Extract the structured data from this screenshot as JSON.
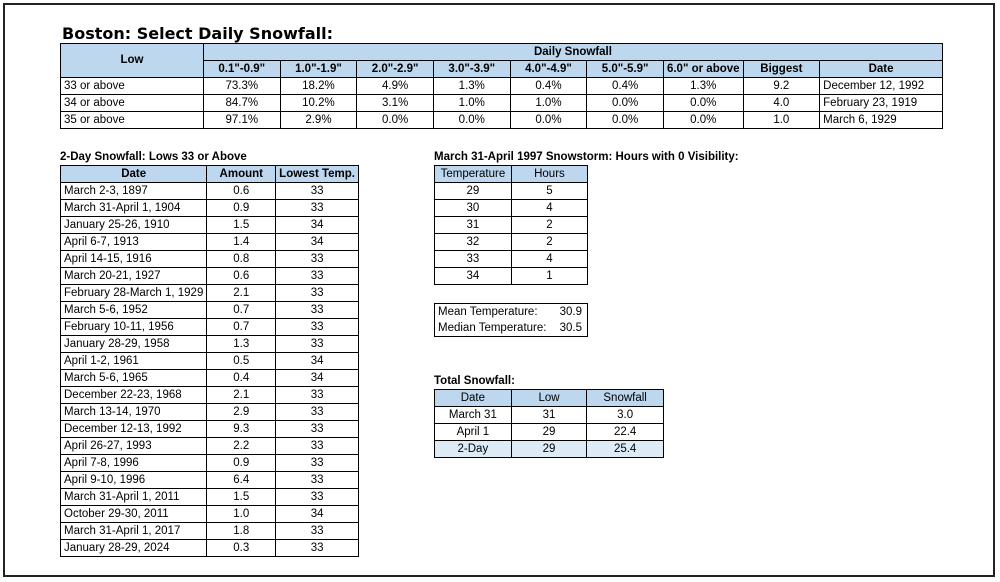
{
  "title": "Boston: Select Daily Snowfall:",
  "daily": {
    "low_header": "Low",
    "group_header": "Daily Snowfall",
    "columns": [
      "0.1\"-0.9\"",
      "1.0\"-1.9\"",
      "2.0\"-2.9\"",
      "3.0\"-3.9\"",
      "4.0\"-4.9\"",
      "5.0\"-5.9\"",
      "6.0\" or above",
      "Biggest",
      "Date"
    ],
    "rows": [
      [
        "33 or above",
        "73.3%",
        "18.2%",
        "4.9%",
        "1.3%",
        "0.4%",
        "0.4%",
        "1.3%",
        "9.2",
        "December 12, 1992"
      ],
      [
        "34 or above",
        "84.7%",
        "10.2%",
        "3.1%",
        "1.0%",
        "1.0%",
        "0.0%",
        "0.0%",
        "4.0",
        "February 23, 1919"
      ],
      [
        "35 or above",
        "97.1%",
        "2.9%",
        "0.0%",
        "0.0%",
        "0.0%",
        "0.0%",
        "0.0%",
        "1.0",
        "March 6, 1929"
      ]
    ]
  },
  "twoday": {
    "title": "2-Day Snowfall: Lows 33 or Above",
    "columns": [
      "Date",
      "Amount",
      "Lowest Temp."
    ],
    "rows": [
      [
        "March 2-3, 1897",
        "0.6",
        "33"
      ],
      [
        "March 31-April 1, 1904",
        "0.9",
        "33"
      ],
      [
        "January 25-26, 1910",
        "1.5",
        "34"
      ],
      [
        "April 6-7, 1913",
        "1.4",
        "34"
      ],
      [
        "April 14-15, 1916",
        "0.8",
        "33"
      ],
      [
        "March 20-21, 1927",
        "0.6",
        "33"
      ],
      [
        "February 28-March 1, 1929",
        "2.1",
        "33"
      ],
      [
        "March 5-6, 1952",
        "0.7",
        "33"
      ],
      [
        "February 10-11, 1956",
        "0.7",
        "33"
      ],
      [
        "January 28-29, 1958",
        "1.3",
        "33"
      ],
      [
        "April 1-2, 1961",
        "0.5",
        "34"
      ],
      [
        "March 5-6, 1965",
        "0.4",
        "34"
      ],
      [
        "December 22-23, 1968",
        "2.1",
        "33"
      ],
      [
        "March 13-14, 1970",
        "2.9",
        "33"
      ],
      [
        "December 12-13, 1992",
        "9.3",
        "33"
      ],
      [
        "April 26-27, 1993",
        "2.2",
        "33"
      ],
      [
        "April 7-8, 1996",
        "0.9",
        "33"
      ],
      [
        "April 9-10, 1996",
        "6.4",
        "33"
      ],
      [
        "March 31-April 1, 2011",
        "1.5",
        "33"
      ],
      [
        "October 29-30, 2011",
        "1.0",
        "34"
      ],
      [
        "March 31-April 1, 2017",
        "1.8",
        "33"
      ],
      [
        "January 28-29, 2024",
        "0.3",
        "33"
      ]
    ]
  },
  "visibility": {
    "title": "March 31-April 1997 Snowstorm: Hours with 0 Visibility:",
    "columns": [
      "Temperature",
      "Hours"
    ],
    "rows": [
      [
        "29",
        "5"
      ],
      [
        "30",
        "4"
      ],
      [
        "31",
        "2"
      ],
      [
        "32",
        "2"
      ],
      [
        "33",
        "4"
      ],
      [
        "34",
        "1"
      ]
    ],
    "mean_label": "Mean Temperature:",
    "mean_value": "30.9",
    "median_label": "Median Temperature:",
    "median_value": "30.5"
  },
  "total": {
    "title": "Total Snowfall:",
    "columns": [
      "Date",
      "Low",
      "Snowfall"
    ],
    "rows": [
      [
        "March 31",
        "31",
        "3.0"
      ],
      [
        "April 1",
        "29",
        "22.4"
      ],
      [
        "2-Day",
        "29",
        "25.4"
      ]
    ]
  }
}
